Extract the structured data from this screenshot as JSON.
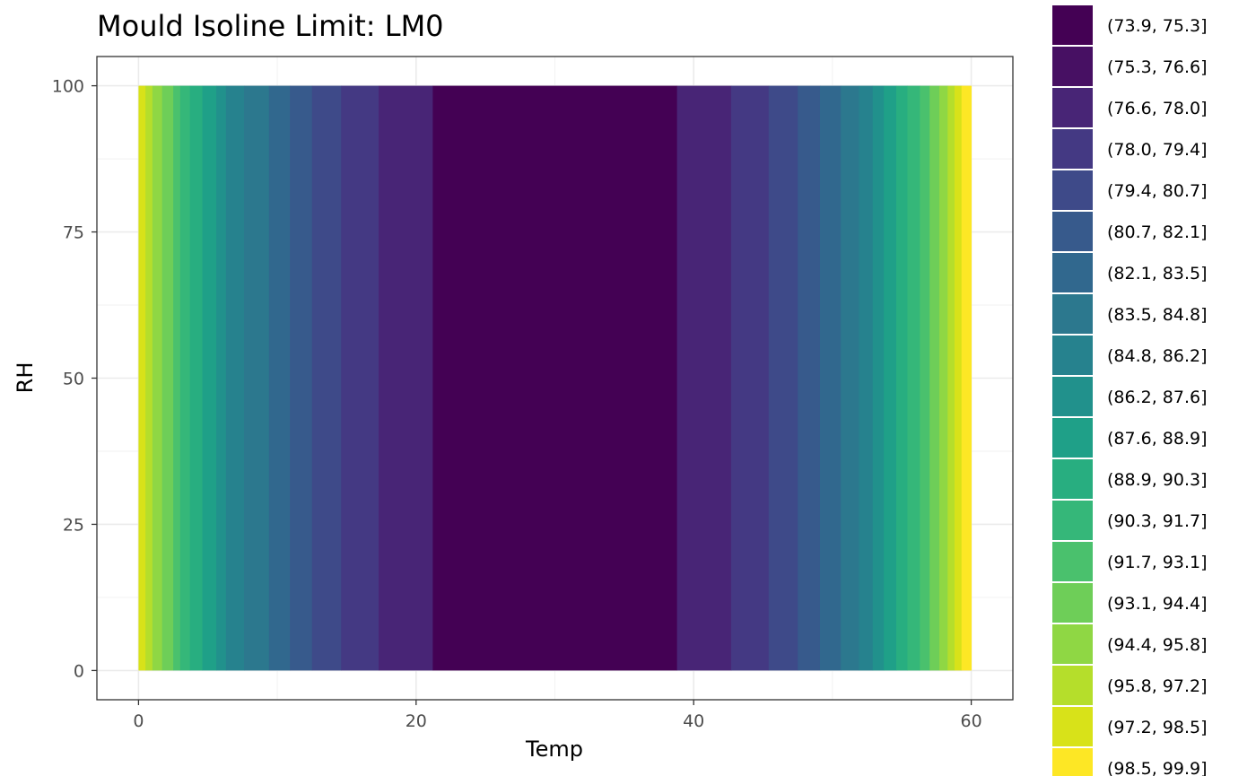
{
  "chart_data": {
    "type": "heatmap",
    "title": "Mould Isoline Limit: LM0",
    "xlabel": "Temp",
    "ylabel": "RH",
    "xlim": [
      -3,
      63
    ],
    "ylim": [
      -5,
      105
    ],
    "x_ticks": [
      "0",
      "20",
      "40",
      "60"
    ],
    "y_ticks": [
      "0",
      "25",
      "50",
      "75",
      "100"
    ],
    "grid": true,
    "legend_position": "right",
    "legend": [
      {
        "label": "(73.9, 75.3]",
        "color": "#440154"
      },
      {
        "label": "(75.3, 76.6]",
        "color": "#471063"
      },
      {
        "label": "(76.6, 78.0]",
        "color": "#482576"
      },
      {
        "label": "(78.0, 79.4]",
        "color": "#443983"
      },
      {
        "label": "(79.4, 80.7]",
        "color": "#3e4a89"
      },
      {
        "label": "(80.7, 82.1]",
        "color": "#375a8c"
      },
      {
        "label": "(82.1, 83.5]",
        "color": "#31688e"
      },
      {
        "label": "(83.5, 84.8]",
        "color": "#2c788e"
      },
      {
        "label": "(84.8, 86.2]",
        "color": "#26828e"
      },
      {
        "label": "(86.2, 87.6]",
        "color": "#21918c"
      },
      {
        "label": "(87.6, 88.9]",
        "color": "#1fa088"
      },
      {
        "label": "(88.9, 90.3]",
        "color": "#28ae80"
      },
      {
        "label": "(90.3, 91.7]",
        "color": "#35b779"
      },
      {
        "label": "(91.7, 93.1]",
        "color": "#4ac16d"
      },
      {
        "label": "(93.1, 94.4]",
        "color": "#6ece58"
      },
      {
        "label": "(94.4, 95.8]",
        "color": "#8fd744"
      },
      {
        "label": "(95.8, 97.2]",
        "color": "#b5de2b"
      },
      {
        "label": "(97.2, 98.5]",
        "color": "#d8e219"
      },
      {
        "label": "(98.5, 99.9]",
        "color": "#fde725"
      }
    ],
    "bands": [
      {
        "x0": 0.0,
        "x1": 0.5,
        "bin": 17
      },
      {
        "x0": 0.5,
        "x1": 1.0,
        "bin": 16
      },
      {
        "x0": 1.0,
        "x1": 1.7,
        "bin": 15
      },
      {
        "x0": 1.7,
        "x1": 2.5,
        "bin": 14
      },
      {
        "x0": 2.5,
        "x1": 3.0,
        "bin": 13
      },
      {
        "x0": 3.0,
        "x1": 3.7,
        "bin": 12
      },
      {
        "x0": 3.7,
        "x1": 4.6,
        "bin": 11
      },
      {
        "x0": 4.6,
        "x1": 5.6,
        "bin": 10
      },
      {
        "x0": 5.6,
        "x1": 6.3,
        "bin": 9
      },
      {
        "x0": 6.3,
        "x1": 7.6,
        "bin": 8
      },
      {
        "x0": 7.6,
        "x1": 9.4,
        "bin": 7
      },
      {
        "x0": 9.4,
        "x1": 10.9,
        "bin": 6
      },
      {
        "x0": 10.9,
        "x1": 12.5,
        "bin": 5
      },
      {
        "x0": 12.5,
        "x1": 14.6,
        "bin": 4
      },
      {
        "x0": 14.6,
        "x1": 17.3,
        "bin": 3
      },
      {
        "x0": 17.3,
        "x1": 21.2,
        "bin": 2
      },
      {
        "x0": 21.2,
        "x1": 38.8,
        "bin": 0
      },
      {
        "x0": 38.8,
        "x1": 42.7,
        "bin": 2
      },
      {
        "x0": 42.7,
        "x1": 45.4,
        "bin": 3
      },
      {
        "x0": 45.4,
        "x1": 47.5,
        "bin": 4
      },
      {
        "x0": 47.5,
        "x1": 49.1,
        "bin": 5
      },
      {
        "x0": 49.1,
        "x1": 50.6,
        "bin": 6
      },
      {
        "x0": 50.6,
        "x1": 51.9,
        "bin": 7
      },
      {
        "x0": 51.9,
        "x1": 52.9,
        "bin": 8
      },
      {
        "x0": 52.9,
        "x1": 53.7,
        "bin": 9
      },
      {
        "x0": 53.7,
        "x1": 54.6,
        "bin": 10
      },
      {
        "x0": 54.6,
        "x1": 55.4,
        "bin": 11
      },
      {
        "x0": 55.4,
        "x1": 56.3,
        "bin": 12
      },
      {
        "x0": 56.3,
        "x1": 57.0,
        "bin": 13
      },
      {
        "x0": 57.0,
        "x1": 57.7,
        "bin": 14
      },
      {
        "x0": 57.7,
        "x1": 58.3,
        "bin": 15
      },
      {
        "x0": 58.3,
        "x1": 58.8,
        "bin": 16
      },
      {
        "x0": 58.8,
        "x1": 59.3,
        "bin": 17
      },
      {
        "x0": 59.3,
        "x1": 60.0,
        "bin": 18
      }
    ],
    "y_range": [
      0,
      100
    ]
  }
}
